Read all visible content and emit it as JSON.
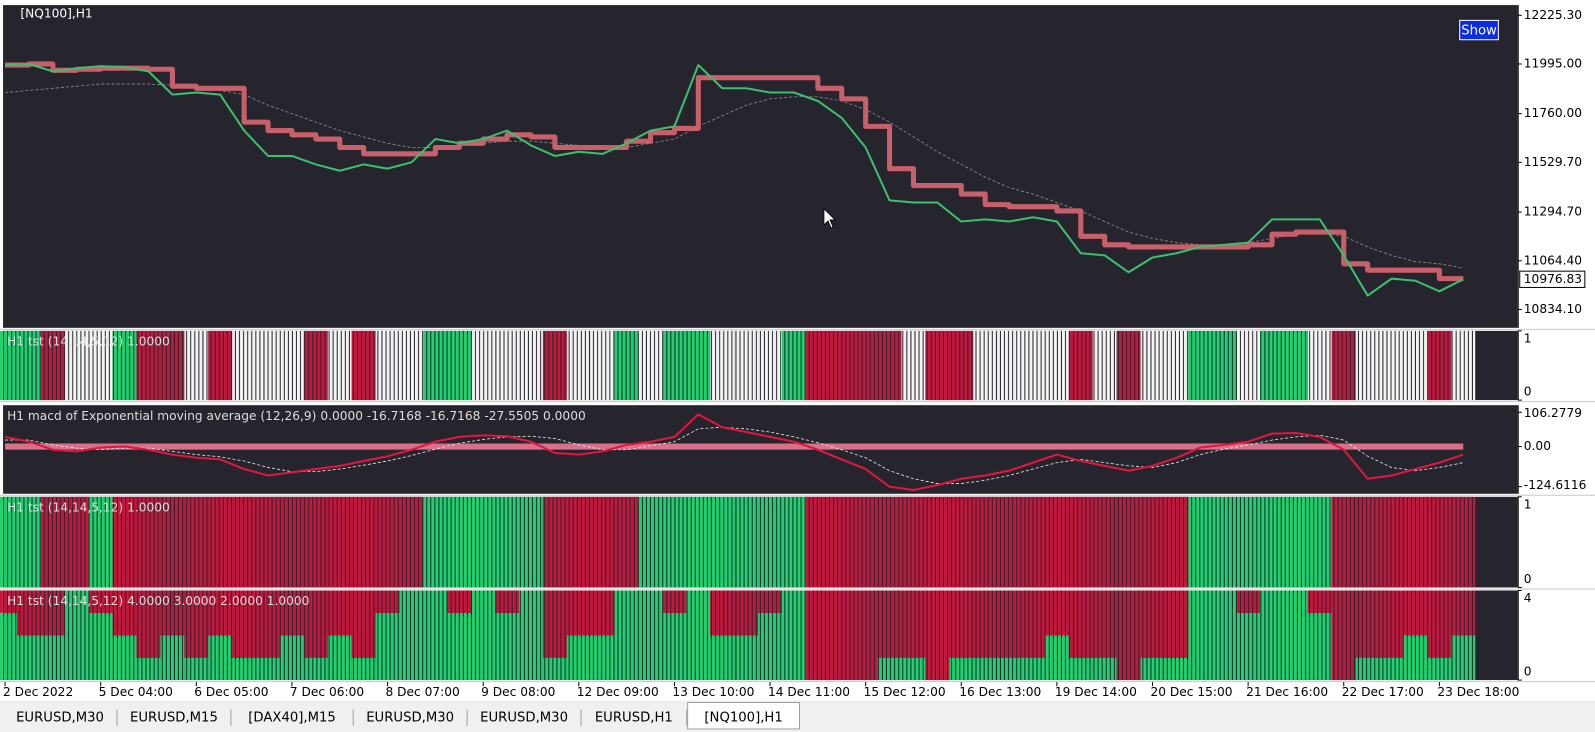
{
  "window": {
    "chart_label": "[NQ100],H1",
    "button": "Show"
  },
  "tabs": [
    "EURUSD,M30",
    "EURUSD,M15",
    "[DAX40],M15",
    "EURUSD,M30",
    "EURUSD,M30",
    "EURUSD,H1",
    "[NQ100],H1"
  ],
  "active_tab": 6,
  "chart_data": [
    {
      "type": "line",
      "current_price": 10976.83,
      "ylim": [
        10747.4,
        12273.4
      ],
      "yticks": [
        {
          "value": 12225.3,
          "label": "12225.30"
        },
        {
          "value": 11995,
          "label": "11995.00"
        },
        {
          "value": 11760,
          "label": "11760.00"
        },
        {
          "value": 11529.7,
          "label": "11529.70"
        },
        {
          "value": 11294.7,
          "label": "11294.70"
        },
        {
          "value": 11064.4,
          "label": "11064.40"
        },
        {
          "value": 10834.1,
          "label": "10834.10"
        }
      ],
      "series": [
        {
          "color": "#8e8e96",
          "dashed": true,
          "values": [
            11860,
            11870,
            11880,
            11890,
            11900,
            11900,
            11900,
            11895,
            11880,
            11870,
            11850,
            11800,
            11760,
            11720,
            11680,
            11650,
            11620,
            11600,
            11600,
            11610,
            11620,
            11630,
            11630,
            11620,
            11610,
            11600,
            11600,
            11620,
            11640,
            11700,
            11750,
            11800,
            11830,
            11840,
            11840,
            11820,
            11780,
            11720,
            11650,
            11580,
            11520,
            11460,
            11410,
            11380,
            11340,
            11300,
            11250,
            11200,
            11170,
            11150,
            11140,
            11140,
            11150,
            11170,
            11190,
            11200,
            11180,
            11130,
            11090,
            11060,
            11050,
            11030
          ]
        },
        {
          "color": "#c8606c",
          "step": true,
          "values": [
            11990,
            11995,
            11965,
            11970,
            11975,
            11975,
            11970,
            11890,
            11880,
            11880,
            11720,
            11680,
            11660,
            11640,
            11600,
            11570,
            11570,
            11570,
            11600,
            11620,
            11640,
            11660,
            11650,
            11600,
            11600,
            11600,
            11630,
            11670,
            11690,
            11930,
            11930,
            11930,
            11930,
            11930,
            11880,
            11830,
            11700,
            11500,
            11420,
            11420,
            11380,
            11330,
            11320,
            11320,
            11300,
            11180,
            11140,
            11130,
            11130,
            11130,
            11130,
            11130,
            11140,
            11190,
            11200,
            11200,
            11050,
            11020,
            11020,
            11020,
            10980,
            10980
          ]
        },
        {
          "color": "#3cbf6e",
          "values": [
            11990,
            11995,
            11960,
            11975,
            11985,
            11980,
            11960,
            11850,
            11860,
            11850,
            11680,
            11560,
            11560,
            11520,
            11490,
            11520,
            11500,
            11530,
            11640,
            11620,
            11640,
            11680,
            11610,
            11560,
            11580,
            11570,
            11620,
            11680,
            11700,
            11990,
            11880,
            11880,
            11860,
            11860,
            11820,
            11740,
            11600,
            11350,
            11340,
            11340,
            11250,
            11260,
            11250,
            11270,
            11250,
            11100,
            11090,
            11010,
            11080,
            11100,
            11130,
            11140,
            11150,
            11260,
            11260,
            11260,
            11090,
            10900,
            10980,
            10970,
            10920,
            10976.83
          ]
        }
      ]
    },
    {
      "type": "bar",
      "stacked": true,
      "title": "H1 tst (14,14,5,12) 1.0000",
      "ylim": [
        0,
        1
      ],
      "yticks": [
        1,
        0
      ],
      "series": [
        {
          "color": "#1fd16f",
          "values": [
            1,
            1,
            null,
            null,
            null,
            1,
            null,
            null,
            null,
            null,
            null,
            null,
            null,
            null,
            null,
            null,
            null,
            null,
            1,
            1,
            null,
            null,
            null,
            null,
            null,
            null,
            1,
            null,
            1,
            1,
            null,
            null,
            null,
            1,
            null,
            null,
            null,
            null,
            null,
            null,
            null,
            null,
            null,
            null,
            null,
            null,
            null,
            null,
            null,
            null,
            1,
            1,
            null,
            1,
            1,
            null,
            null,
            null,
            null,
            null,
            null,
            null
          ]
        },
        {
          "color": "#c3173d",
          "values": [
            null,
            null,
            1,
            null,
            null,
            null,
            1,
            1,
            null,
            1,
            null,
            null,
            null,
            1,
            null,
            1,
            null,
            null,
            null,
            null,
            null,
            null,
            null,
            1,
            null,
            null,
            null,
            null,
            null,
            null,
            null,
            null,
            null,
            null,
            1,
            1,
            1,
            1,
            null,
            1,
            1,
            null,
            null,
            null,
            null,
            1,
            null,
            1,
            null,
            null,
            null,
            null,
            null,
            null,
            null,
            null,
            1,
            null,
            null,
            null,
            1,
            null
          ]
        },
        {
          "color": "#f4f4f4",
          "values": [
            null,
            null,
            null,
            1,
            1,
            null,
            null,
            null,
            1,
            null,
            1,
            1,
            1,
            null,
            1,
            null,
            1,
            1,
            null,
            null,
            1,
            1,
            1,
            null,
            1,
            1,
            null,
            1,
            null,
            null,
            1,
            1,
            1,
            null,
            null,
            null,
            null,
            null,
            1,
            null,
            null,
            1,
            1,
            1,
            1,
            null,
            1,
            null,
            1,
            1,
            null,
            null,
            1,
            null,
            null,
            1,
            null,
            1,
            1,
            1,
            null,
            1
          ]
        }
      ]
    },
    {
      "type": "line",
      "title": "H1 macd of Exponential moving average (12,26,9) 0.0000 -16.7168 -16.7168 -27.5505 0.0000",
      "ylim": [
        -146.75,
        128.4
      ],
      "yticks": [
        106.2779,
        {
          "value": 0,
          "label": "0.00"
        },
        -124.6116
      ],
      "zero_color": "#d9708a",
      "series": [
        {
          "color": "#e8e8e8",
          "dashed": true,
          "values": [
            20,
            20,
            5,
            -5,
            -10,
            -5,
            -5,
            -15,
            -25,
            -32,
            -45,
            -65,
            -78,
            -78,
            -70,
            -58,
            -45,
            -28,
            -8,
            10,
            22,
            30,
            32,
            25,
            5,
            -10,
            -10,
            2,
            15,
            55,
            60,
            55,
            45,
            30,
            12,
            -10,
            -35,
            -75,
            -100,
            -115,
            -115,
            -105,
            -90,
            -70,
            -50,
            -40,
            -50,
            -60,
            -65,
            -50,
            -25,
            -8,
            5,
            20,
            30,
            35,
            20,
            -30,
            -65,
            -75,
            -65,
            -50
          ]
        },
        {
          "color": "#e0183f",
          "values": [
            30,
            15,
            -10,
            -15,
            -3,
            0,
            -10,
            -25,
            -35,
            -40,
            -70,
            -90,
            -80,
            -70,
            -60,
            -45,
            -30,
            -10,
            15,
            30,
            35,
            32,
            15,
            -20,
            -25,
            -15,
            5,
            15,
            30,
            100,
            60,
            45,
            30,
            15,
            -10,
            -40,
            -70,
            -125,
            -135,
            -120,
            -100,
            -90,
            -75,
            -50,
            -25,
            -45,
            -60,
            -75,
            -60,
            -35,
            -3,
            5,
            15,
            40,
            42,
            30,
            -10,
            -100,
            -90,
            -70,
            -50,
            -25
          ]
        }
      ]
    },
    {
      "type": "bar",
      "stacked": true,
      "title": "H1 tst (14,14,5,12) 1.0000",
      "ylim": [
        0,
        1
      ],
      "yticks": [
        1,
        0
      ],
      "series": [
        {
          "color": "#1fd16f",
          "values": [
            1,
            1,
            null,
            null,
            1,
            null,
            null,
            null,
            null,
            null,
            null,
            null,
            null,
            null,
            null,
            null,
            null,
            null,
            1,
            1,
            1,
            1,
            1,
            null,
            null,
            null,
            null,
            1,
            1,
            1,
            1,
            1,
            1,
            1,
            null,
            null,
            null,
            null,
            null,
            null,
            null,
            null,
            null,
            null,
            null,
            null,
            null,
            null,
            null,
            null,
            1,
            1,
            1,
            1,
            1,
            1,
            null,
            null,
            null,
            null,
            null,
            null
          ]
        },
        {
          "color": "#c3173d",
          "values": [
            null,
            null,
            1,
            1,
            null,
            1,
            1,
            1,
            1,
            1,
            1,
            1,
            1,
            1,
            1,
            1,
            1,
            1,
            null,
            null,
            null,
            null,
            null,
            1,
            1,
            1,
            1,
            null,
            null,
            null,
            null,
            null,
            null,
            null,
            1,
            1,
            1,
            1,
            1,
            1,
            1,
            1,
            1,
            1,
            1,
            1,
            1,
            1,
            1,
            1,
            null,
            null,
            null,
            null,
            null,
            null,
            1,
            1,
            1,
            1,
            1,
            1
          ]
        }
      ]
    },
    {
      "type": "bar",
      "stacked": true,
      "title": "H1 tst (14,14,5,12) 4.0000 3.0000 2.0000 1.0000",
      "ylim": [
        0,
        4
      ],
      "yticks": [
        4,
        0
      ],
      "categories": [
        "2 Dec 2022",
        null,
        null,
        null,
        "5 Dec 04:00",
        null,
        null,
        null,
        "6 Dec 05:00",
        null,
        null,
        null,
        "7 Dec 06:00",
        null,
        null,
        null,
        "8 Dec 07:00",
        null,
        null,
        null,
        "9 Dec 08:00",
        null,
        null,
        null,
        "12 Dec 09:00",
        null,
        null,
        null,
        "13 Dec 10:00",
        null,
        null,
        null,
        "14 Dec 11:00",
        null,
        null,
        null,
        "15 Dec 12:00",
        null,
        null,
        null,
        "16 Dec 13:00",
        null,
        null,
        null,
        "19 Dec 14:00",
        null,
        null,
        null,
        "20 Dec 15:00",
        null,
        null,
        null,
        "21 Dec 16:00",
        null,
        null,
        null,
        "22 Dec 17:00",
        null,
        null,
        null,
        "23 Dec 18:00",
        null
      ],
      "series": [
        {
          "color": "#1fd16f",
          "values": [
            3,
            2,
            2,
            4,
            3,
            2,
            1,
            2,
            1,
            2,
            1,
            1,
            2,
            1,
            2,
            1,
            3,
            4,
            4,
            3,
            4,
            3,
            4,
            1,
            2,
            2,
            4,
            4,
            3,
            4,
            2,
            2,
            3,
            4,
            0,
            0,
            0,
            1,
            1,
            0,
            1,
            1,
            1,
            1,
            2,
            1,
            1,
            0,
            1,
            1,
            4,
            4,
            3,
            4,
            4,
            3,
            0,
            1,
            1,
            2,
            1,
            2
          ]
        },
        {
          "color": "#c3173d",
          "values": [
            1,
            2,
            2,
            0,
            1,
            2,
            3,
            2,
            3,
            2,
            3,
            3,
            2,
            3,
            2,
            3,
            1,
            0,
            0,
            1,
            0,
            1,
            0,
            3,
            2,
            2,
            0,
            0,
            1,
            0,
            2,
            2,
            1,
            0,
            4,
            4,
            4,
            3,
            3,
            4,
            3,
            3,
            3,
            3,
            2,
            3,
            3,
            4,
            3,
            3,
            0,
            0,
            1,
            0,
            0,
            1,
            4,
            3,
            3,
            2,
            3,
            2
          ]
        }
      ]
    }
  ]
}
